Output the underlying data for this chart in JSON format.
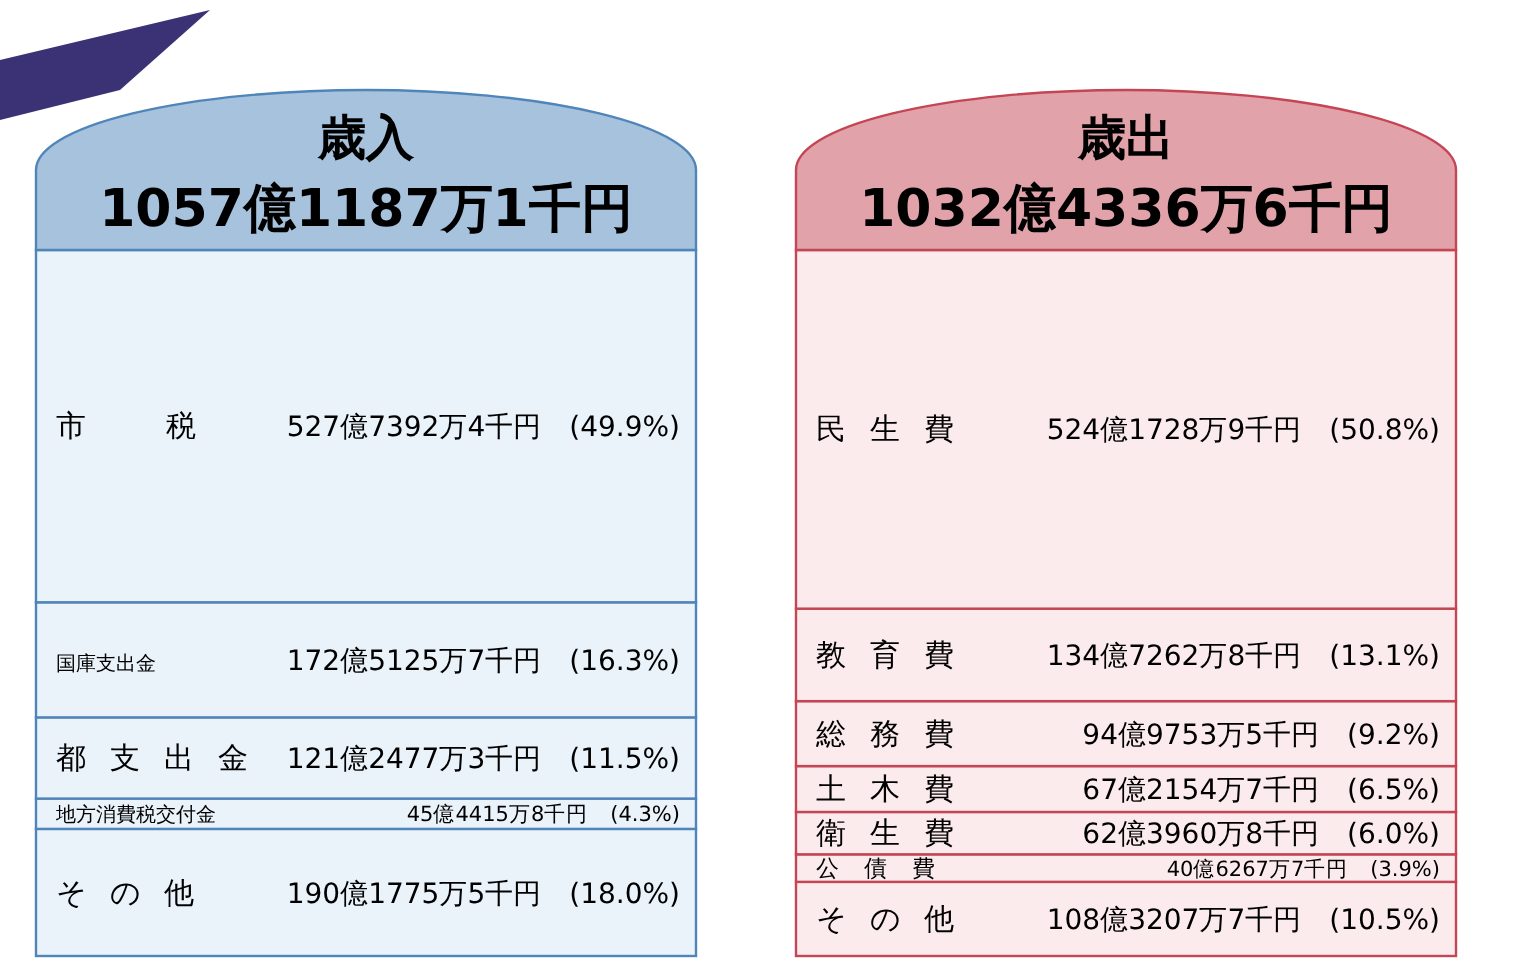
{
  "chart_data": [
    {
      "type": "bar",
      "stacked": true,
      "title": "歳入",
      "subtitle": "1057億1187万1千円",
      "categories": [
        null
      ],
      "series": [
        {
          "name": "その他",
          "color": "#eaf2fa",
          "values": [
            18.0
          ],
          "value_labels": [
            "190億1775万5千円　(18.0%)"
          ]
        },
        {
          "name": "地方消費税交付金",
          "color": "#eaf2fa",
          "values": [
            4.3
          ],
          "value_labels": [
            "45億4415万8千円　(4.3%)"
          ]
        },
        {
          "name": "都支出金",
          "color": "#eaf2fa",
          "values": [
            11.5
          ],
          "value_labels": [
            "121億2477万3千円　(11.5%)"
          ]
        },
        {
          "name": "国庫支出金",
          "color": "#eaf2fa",
          "values": [
            16.3
          ],
          "value_labels": [
            "172億5125万7千円　(16.3%)"
          ]
        },
        {
          "name": "市税",
          "color": "#eaf2fa",
          "values": [
            49.9
          ],
          "value_labels": [
            "527億7392万4千円　(49.9%)"
          ]
        }
      ]
    },
    {
      "type": "bar",
      "stacked": true,
      "title": "歳出",
      "subtitle": "1032億4336万6千円",
      "categories": [
        null
      ],
      "series": [
        {
          "name": "その他",
          "color": "#fcebed",
          "values": [
            10.5
          ],
          "value_labels": [
            "108億3207万7千円　(10.5%)"
          ]
        },
        {
          "name": "公債費",
          "color": "#fcebed",
          "values": [
            3.9
          ],
          "value_labels": [
            "40億6267万7千円　(3.9%)"
          ]
        },
        {
          "name": "衛生費",
          "color": "#fcebed",
          "values": [
            6.0
          ],
          "value_labels": [
            "62億3960万8千円　(6.0%)"
          ]
        },
        {
          "name": "土木費",
          "color": "#fcebed",
          "values": [
            6.5
          ],
          "value_labels": [
            "67億2154万7千円　(6.5%)"
          ]
        },
        {
          "name": "総務費",
          "color": "#fcebed",
          "values": [
            9.2
          ],
          "value_labels": [
            "94億9753万5千円　(9.2%)"
          ]
        },
        {
          "name": "教育費",
          "color": "#fcebed",
          "values": [
            13.1
          ],
          "value_labels": [
            "134億7262万8千円　(13.1%)"
          ]
        },
        {
          "name": "民生費",
          "color": "#fcebed",
          "values": [
            50.8
          ],
          "value_labels": [
            "524億1728万9千円　(50.8%)"
          ]
        }
      ]
    }
  ]
}
